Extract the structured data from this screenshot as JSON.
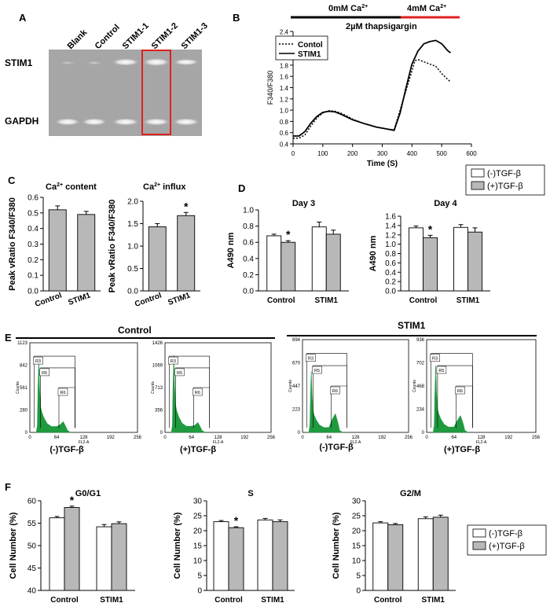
{
  "panel_labels": {
    "a": "A",
    "b": "B",
    "c": "C",
    "d": "D",
    "e": "E",
    "f": "F"
  },
  "panel_a": {
    "lanes": [
      "Blank",
      "Control",
      "STIM1-1",
      "STIM1-2",
      "STIM1-3"
    ],
    "row_labels": [
      "STIM1",
      "GAPDH"
    ],
    "highlight_color": "#e02020"
  },
  "panel_b": {
    "condition_0": "0mM Ca",
    "condition_4": "4mM Ca",
    "superscript": "2+",
    "drug": "2µM thapsigargin",
    "bar_colors": [
      "#000000",
      "#e02020"
    ],
    "chart_data": {
      "type": "line",
      "xlabel": "Time (S)",
      "ylabel": "F340/F380",
      "xlim": [
        0,
        600
      ],
      "ylim": [
        0.4,
        2.4
      ],
      "x_ticks": [
        "0",
        "100",
        "200",
        "300",
        "400",
        "500",
        "600"
      ],
      "y_ticks": [
        "0.4",
        "0.6",
        "0.8",
        "1.0",
        "1.2",
        "1.4",
        "1.6",
        "1.8",
        "2.0",
        "2.2",
        "2.4"
      ],
      "legend": [
        "Contol",
        "STIM1"
      ],
      "series": [
        {
          "name": "Contol",
          "style": "dotted",
          "points": [
            [
              0,
              0.5
            ],
            [
              20,
              0.5
            ],
            [
              40,
              0.56
            ],
            [
              60,
              0.72
            ],
            [
              80,
              0.86
            ],
            [
              100,
              0.95
            ],
            [
              120,
              0.99
            ],
            [
              140,
              0.98
            ],
            [
              160,
              0.95
            ],
            [
              180,
              0.9
            ],
            [
              200,
              0.84
            ],
            [
              240,
              0.76
            ],
            [
              280,
              0.7
            ],
            [
              320,
              0.66
            ],
            [
              340,
              0.65
            ],
            [
              360,
              1.0
            ],
            [
              380,
              1.35
            ],
            [
              400,
              1.7
            ],
            [
              410,
              1.88
            ],
            [
              420,
              1.9
            ],
            [
              440,
              1.86
            ],
            [
              460,
              1.82
            ],
            [
              480,
              1.78
            ],
            [
              500,
              1.65
            ],
            [
              520,
              1.55
            ],
            [
              530,
              1.5
            ]
          ]
        },
        {
          "name": "STIM1",
          "style": "solid",
          "points": [
            [
              0,
              0.54
            ],
            [
              20,
              0.54
            ],
            [
              40,
              0.62
            ],
            [
              60,
              0.77
            ],
            [
              80,
              0.89
            ],
            [
              100,
              0.96
            ],
            [
              120,
              0.98
            ],
            [
              140,
              0.97
            ],
            [
              160,
              0.93
            ],
            [
              180,
              0.88
            ],
            [
              200,
              0.83
            ],
            [
              240,
              0.76
            ],
            [
              280,
              0.7
            ],
            [
              320,
              0.66
            ],
            [
              340,
              0.64
            ],
            [
              360,
              0.95
            ],
            [
              380,
              1.4
            ],
            [
              400,
              1.82
            ],
            [
              420,
              2.05
            ],
            [
              440,
              2.18
            ],
            [
              460,
              2.22
            ],
            [
              480,
              2.24
            ],
            [
              500,
              2.18
            ],
            [
              520,
              2.06
            ],
            [
              530,
              2.02
            ]
          ]
        }
      ]
    }
  },
  "panel_c": {
    "title_left_pre": "Ca",
    "title_left_post": " content",
    "title_right_pre": "Ca",
    "title_right_post": " influx",
    "superscript": "2+",
    "chart_data": [
      {
        "type": "bar",
        "ylabel": "Peak vRatio F340/F380",
        "ylim": [
          0,
          0.6
        ],
        "y_ticks": [
          "0.0",
          "0.1",
          "0.2",
          "0.3",
          "0.4",
          "0.5",
          "0.6"
        ],
        "categories": [
          "Control",
          "STIM1"
        ],
        "values": [
          0.52,
          0.49
        ],
        "errors": [
          0.025,
          0.02
        ],
        "significant": [
          "",
          ""
        ]
      },
      {
        "type": "bar",
        "ylabel": "Peak vRatio F340/F380",
        "ylim": [
          0,
          2.0
        ],
        "y_ticks": [
          "0.0",
          "0.5",
          "1.0",
          "1.5",
          "2.0"
        ],
        "categories": [
          "Control",
          "STIM1"
        ],
        "values": [
          1.43,
          1.68
        ],
        "errors": [
          0.07,
          0.07
        ],
        "significant": [
          "",
          "*"
        ]
      }
    ]
  },
  "legend": {
    "neg": "(-)TGF-β",
    "pos": "(+)TGF-β",
    "neg_color": "#ffffff",
    "pos_color": "#b8b8b8"
  },
  "panel_d": {
    "chart_data": [
      {
        "type": "bar",
        "title": "Day 3",
        "ylabel": "A490 nm",
        "ylim": [
          0,
          1.0
        ],
        "y_ticks": [
          "0.0",
          "0.2",
          "0.4",
          "0.6",
          "0.8",
          "1.0"
        ],
        "categories": [
          "Control",
          "STIM1"
        ],
        "series": [
          {
            "name": "(-)TGF-β",
            "values": [
              0.68,
              0.79
            ],
            "errors": [
              0.02,
              0.06
            ]
          },
          {
            "name": "(+)TGF-β",
            "values": [
              0.6,
              0.7
            ],
            "errors": [
              0.02,
              0.05
            ]
          }
        ],
        "significant": [
          "*",
          ""
        ]
      },
      {
        "type": "bar",
        "title": "Day 4",
        "ylabel": "A490 nm",
        "ylim": [
          0,
          1.6
        ],
        "y_ticks": [
          "0.0",
          "0.2",
          "0.4",
          "0.6",
          "0.8",
          "1.0",
          "1.2",
          "1.4",
          "1.6"
        ],
        "categories": [
          "Control",
          "STIM1"
        ],
        "series": [
          {
            "name": "(-)TGF-β",
            "values": [
              1.35,
              1.36
            ],
            "errors": [
              0.04,
              0.06
            ]
          },
          {
            "name": "(+)TGF-β",
            "values": [
              1.14,
              1.26
            ],
            "errors": [
              0.05,
              0.09
            ]
          }
        ],
        "significant": [
          "*",
          ""
        ]
      }
    ]
  },
  "panel_e": {
    "group_labels": [
      "Control",
      "STIM1"
    ],
    "gate_labels": [
      "R3",
      "R5",
      "R6"
    ],
    "xlabel": "FL2-A",
    "ylabel": "Counts",
    "fill_color": "#1f9a3e",
    "histograms": [
      {
        "caption": "(-)TGF-β",
        "y_ticks": [
          "0",
          "280",
          "561",
          "842",
          "1123"
        ],
        "x_ticks": [
          "0",
          "64",
          "128",
          "192",
          "256"
        ],
        "g1_peak": 0.82,
        "g2_peak": 0.12
      },
      {
        "caption": "(+)TGF-β",
        "y_ticks": [
          "0",
          "356",
          "713",
          "1069",
          "1426"
        ],
        "x_ticks": [
          "0",
          "64",
          "128",
          "192",
          "256"
        ],
        "g1_peak": 0.86,
        "g2_peak": 0.11
      },
      {
        "caption": "(-)TGF-β",
        "y_ticks": [
          "0",
          "223",
          "447",
          "670",
          "894"
        ],
        "x_ticks": [
          "0",
          "64",
          "128",
          "192",
          "256"
        ],
        "g1_peak": 0.66,
        "g2_peak": 0.2
      },
      {
        "caption": "(+)TGF-β",
        "y_ticks": [
          "0",
          "234",
          "468",
          "702",
          "936"
        ],
        "x_ticks": [
          "0",
          "64",
          "128",
          "192",
          "256"
        ],
        "g1_peak": 0.72,
        "g2_peak": 0.18
      }
    ]
  },
  "panel_f": {
    "chart_data": [
      {
        "type": "bar",
        "title": "G0/G1",
        "ylabel": "Cell Number (%)",
        "ylim": [
          40,
          60
        ],
        "y_ticks": [
          "40",
          "45",
          "50",
          "55",
          "60"
        ],
        "categories": [
          "Control",
          "STIM1"
        ],
        "series": [
          {
            "name": "(-)TGF-β",
            "values": [
              56.2,
              54.2
            ],
            "errors": [
              0.3,
              0.5
            ]
          },
          {
            "name": "(+)TGF-β",
            "values": [
              58.5,
              54.9
            ],
            "errors": [
              0.3,
              0.4
            ]
          }
        ],
        "significant": [
          "*",
          ""
        ]
      },
      {
        "type": "bar",
        "title": "S",
        "ylabel": "Cell Number (%)",
        "ylim": [
          0,
          30
        ],
        "y_ticks": [
          "0",
          "5",
          "10",
          "15",
          "20",
          "25",
          "30"
        ],
        "categories": [
          "Control",
          "STIM1"
        ],
        "series": [
          {
            "name": "(-)TGF-β",
            "values": [
              23.0,
              23.6
            ],
            "errors": [
              0.4,
              0.5
            ]
          },
          {
            "name": "(+)TGF-β",
            "values": [
              21.0,
              23.0
            ],
            "errors": [
              0.3,
              0.6
            ]
          }
        ],
        "significant": [
          "*",
          ""
        ]
      },
      {
        "type": "bar",
        "title": "G2/M",
        "ylabel": "Cell Number (%)",
        "ylim": [
          0,
          30
        ],
        "y_ticks": [
          "0",
          "5",
          "10",
          "15",
          "20",
          "25",
          "30"
        ],
        "categories": [
          "Control",
          "STIM1"
        ],
        "series": [
          {
            "name": "(-)TGF-β",
            "values": [
              22.6,
              24.0
            ],
            "errors": [
              0.4,
              0.6
            ]
          },
          {
            "name": "(+)TGF-β",
            "values": [
              22.0,
              24.5
            ],
            "errors": [
              0.4,
              0.7
            ]
          }
        ],
        "significant": [
          "",
          ""
        ]
      }
    ]
  }
}
